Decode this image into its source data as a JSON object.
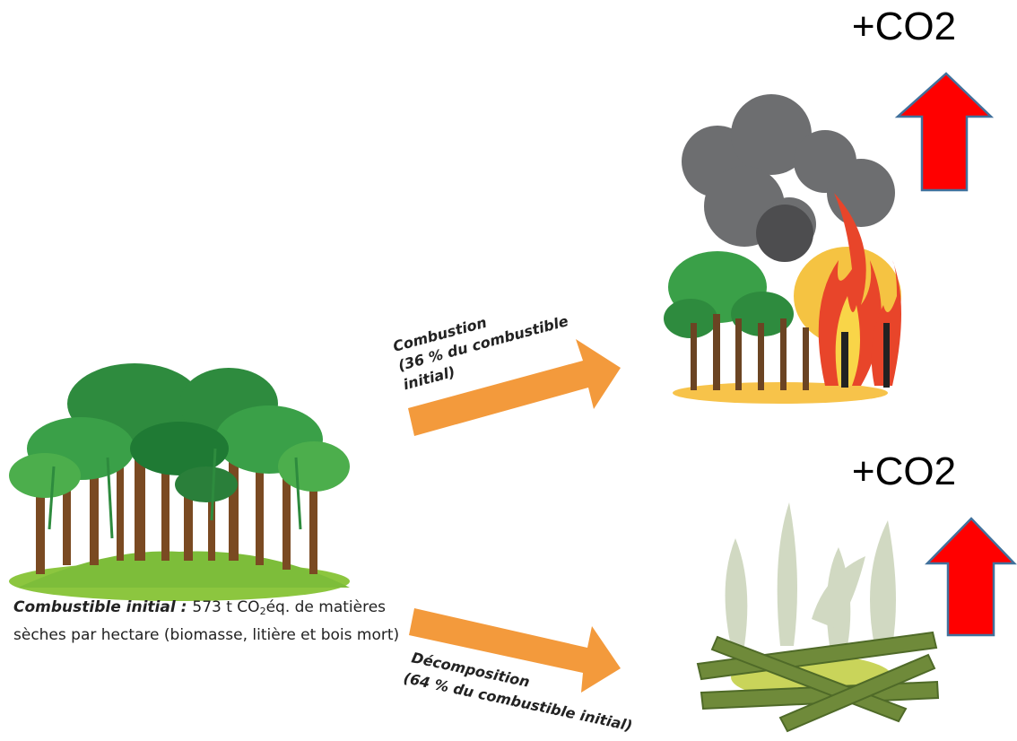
{
  "co2_top": {
    "label": "+CO2"
  },
  "co2_bottom": {
    "label": "+CO2"
  },
  "combustion": {
    "lines": [
      "Combustion",
      "(36 % du combustible",
      "initial)"
    ]
  },
  "decomposition": {
    "lines": [
      "Décomposition",
      "(64 % du combustible initial)"
    ]
  },
  "caption": {
    "label": "Combustible initial :",
    "parts": [
      "573 t CO",
      "2",
      "éq. de matières"
    ],
    "line2": "sèches par hectare (biomasse, litière et bois mort)"
  }
}
